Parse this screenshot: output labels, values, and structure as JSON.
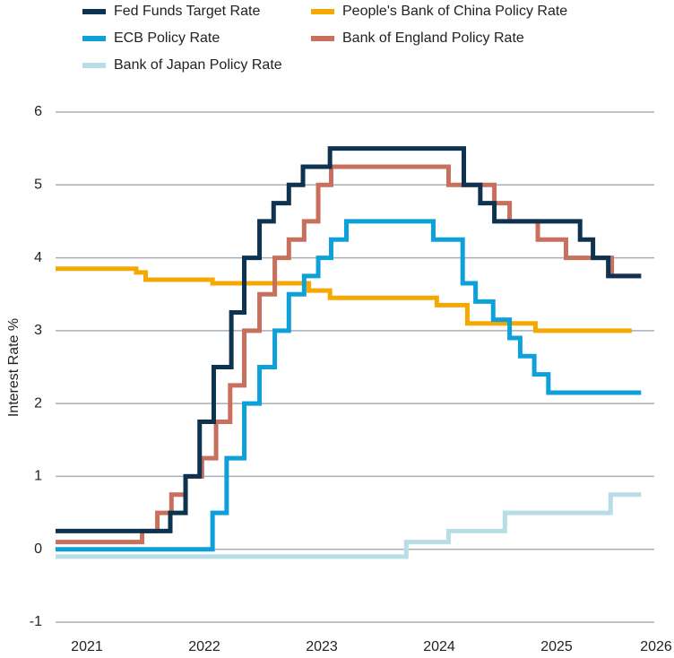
{
  "chart_data": {
    "type": "line",
    "step": "post",
    "y_label": "Interest Rate %",
    "xlim": [
      2020.733,
      2025.832
    ],
    "xticks": [
      2021,
      2022,
      2023,
      2024,
      2025,
      2026
    ],
    "ylim": [
      -1,
      6
    ],
    "yticks": [
      -1,
      0,
      1,
      2,
      3,
      4,
      5,
      6
    ],
    "grid": true,
    "legend": "top",
    "series": [
      {
        "name": "Fed Funds Target Rate",
        "color": "#0d3350",
        "x": [
          2020.733,
          2021.71,
          2021.84,
          2021.96,
          2022.08,
          2022.23,
          2022.34,
          2022.47,
          2022.59,
          2022.72,
          2022.84,
          2023.07,
          2024.21,
          2024.35,
          2024.47,
          2025.2,
          2025.31,
          2025.44,
          2025.72
        ],
        "values": [
          0.25,
          0.5,
          1.0,
          1.75,
          2.5,
          3.25,
          4.0,
          4.5,
          4.75,
          5.0,
          5.25,
          5.5,
          5.0,
          4.75,
          4.5,
          4.25,
          4.0,
          3.75,
          3.75
        ]
      },
      {
        "name": "People's Bank of China Policy Rate",
        "color": "#f5a800",
        "x": [
          2020.733,
          2021.42,
          2021.5,
          2022.07,
          2022.89,
          2023.07,
          2023.98,
          2024.24,
          2024.82,
          2025.64
        ],
        "values": [
          3.85,
          3.8,
          3.7,
          3.65,
          3.55,
          3.45,
          3.35,
          3.1,
          3.0,
          3.0
        ]
      },
      {
        "name": "ECB Policy Rate",
        "color": "#0ea0d8",
        "x": [
          2020.733,
          2022.07,
          2022.19,
          2022.34,
          2022.47,
          2022.6,
          2022.72,
          2022.85,
          2022.97,
          2023.08,
          2023.21,
          2023.95,
          2024.2,
          2024.31,
          2024.46,
          2024.6,
          2024.69,
          2024.81,
          2024.93,
          2025.72
        ],
        "values": [
          0,
          0.5,
          1.25,
          2.0,
          2.5,
          3.0,
          3.5,
          3.75,
          4.0,
          4.25,
          4.5,
          4.25,
          3.65,
          3.4,
          3.15,
          2.9,
          2.65,
          2.4,
          2.15,
          2.15
        ]
      },
      {
        "name": "Bank of England Policy Rate",
        "color": "#c96f5e",
        "x": [
          2020.733,
          2021.47,
          2021.6,
          2021.72,
          2021.84,
          2021.98,
          2022.1,
          2022.22,
          2022.34,
          2022.47,
          2022.6,
          2022.72,
          2022.85,
          2022.97,
          2023.08,
          2024.08,
          2024.47,
          2024.6,
          2024.84,
          2025.08,
          2025.47,
          2025.72
        ],
        "values": [
          0.1,
          0.25,
          0.5,
          0.75,
          1.0,
          1.25,
          1.75,
          2.25,
          3.0,
          3.5,
          4.0,
          4.25,
          4.5,
          5.0,
          5.25,
          5.0,
          4.75,
          4.5,
          4.25,
          4.0,
          3.75,
          3.75
        ]
      },
      {
        "name": "Bank of Japan Policy Rate",
        "color": "#b9dde6",
        "x": [
          2020.733,
          2023.72,
          2024.08,
          2024.56,
          2025.46,
          2025.72
        ],
        "values": [
          -0.1,
          0.1,
          0.25,
          0.5,
          0.75,
          0.75
        ]
      }
    ]
  }
}
